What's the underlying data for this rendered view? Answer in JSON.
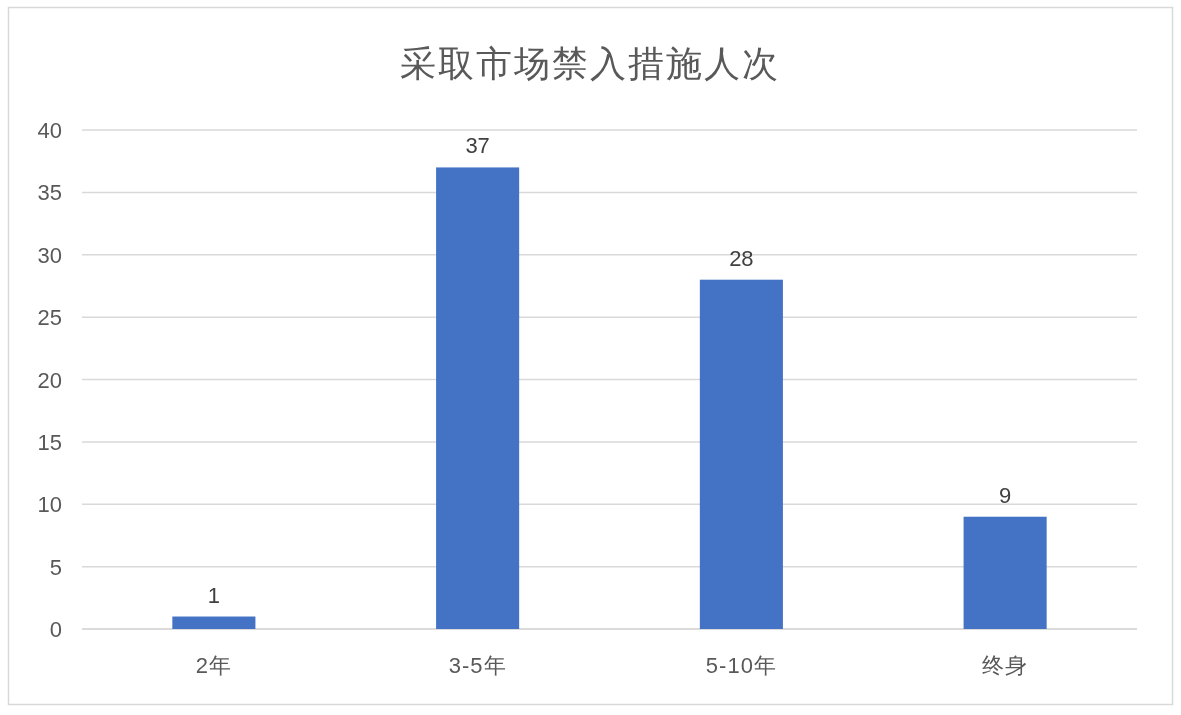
{
  "chart_data": {
    "type": "bar",
    "title": "采取市场禁入措施人次",
    "categories": [
      "2年",
      "3-5年",
      "5-10年",
      "终身"
    ],
    "values": [
      1,
      37,
      28,
      9
    ],
    "color": "#4472c4",
    "ylim": [
      0,
      40
    ],
    "yticks": [
      0,
      5,
      10,
      15,
      20,
      25,
      30,
      35,
      40
    ],
    "grid": "y",
    "data_labels": true
  }
}
